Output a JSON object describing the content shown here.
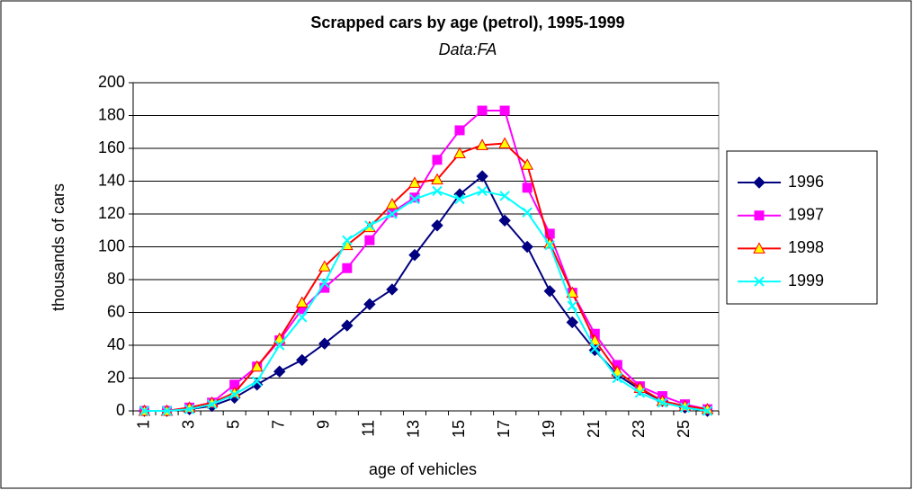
{
  "chart_data": {
    "type": "line",
    "title": "Scrapped cars by age (petrol), 1995-1999",
    "subtitle": "Data:FA",
    "y_label": "thousands of cars",
    "x_label": "age of vehicles",
    "categories": [
      "1",
      null,
      "3",
      null,
      "5",
      null,
      "7",
      null,
      "9",
      null,
      "11",
      null,
      "13",
      null,
      "15",
      null,
      "17",
      null,
      "19",
      null,
      "21",
      null,
      "23",
      null,
      "25",
      null
    ],
    "series": [
      {
        "name": "1996",
        "color": "#000080",
        "marker": "diamond",
        "marker_fill": "#000080",
        "values": [
          0,
          0,
          1,
          3,
          8,
          16,
          24,
          31,
          41,
          52,
          65,
          74,
          95,
          113,
          132,
          143,
          116,
          100,
          73,
          54,
          37,
          22,
          13,
          6,
          2,
          0
        ]
      },
      {
        "name": "1997",
        "color": "#ff00ff",
        "marker": "square",
        "marker_fill": "#ff00ff",
        "values": [
          0,
          0,
          2,
          5,
          16,
          27,
          43,
          62,
          75,
          87,
          104,
          121,
          130,
          153,
          171,
          183,
          183,
          136,
          108,
          72,
          47,
          28,
          15,
          9,
          4,
          1
        ]
      },
      {
        "name": "1998",
        "color": "#ff0000",
        "marker": "triangle",
        "marker_fill": "#ffff00",
        "values": [
          0,
          0,
          2,
          5,
          11,
          27,
          44,
          66,
          88,
          101,
          112,
          126,
          139,
          141,
          157,
          162,
          163,
          150,
          102,
          72,
          43,
          24,
          14,
          6,
          3,
          1
        ]
      },
      {
        "name": "1999",
        "color": "#00ffff",
        "marker": "x",
        "marker_fill": "#00ffff",
        "values": [
          0,
          0,
          1,
          4,
          10,
          18,
          40,
          57,
          78,
          104,
          113,
          120,
          129,
          134,
          129,
          134,
          131,
          121,
          101,
          64,
          38,
          20,
          11,
          5,
          2,
          0
        ]
      }
    ],
    "ylim": [
      0,
      200
    ],
    "yticks": [
      0,
      20,
      40,
      60,
      80,
      100,
      120,
      140,
      160,
      180,
      200
    ],
    "grid": true,
    "legend": "right"
  }
}
